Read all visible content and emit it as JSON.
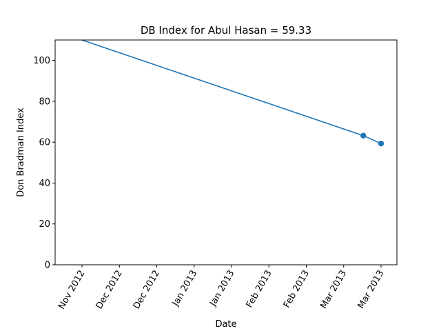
{
  "chart_data": {
    "type": "line",
    "title": "DB Index for Abul Hasan = 59.33",
    "xlabel": "Date",
    "ylabel": "Don Bradman Index",
    "x_tick_labels": [
      "Nov 2012",
      "Dec 2012",
      "Dec 2012",
      "Jan 2013",
      "Jan 2013",
      "Feb 2013",
      "Feb 2013",
      "Mar 2013",
      "Mar 2013"
    ],
    "y_tick_labels": [
      "0",
      "20",
      "40",
      "60",
      "80",
      "100"
    ],
    "y_ticks": [
      0,
      20,
      40,
      60,
      80,
      100
    ],
    "ylim": [
      0,
      110
    ],
    "grid": false,
    "series": [
      {
        "color": "#1f77b4",
        "points": [
          {
            "date": "2012-11-01",
            "y": 110.0
          },
          {
            "date": "2013-03-08",
            "y": 63.2
          },
          {
            "date": "2013-03-16",
            "y": 59.33
          }
        ],
        "markers": [
          false,
          true,
          true
        ]
      }
    ]
  }
}
